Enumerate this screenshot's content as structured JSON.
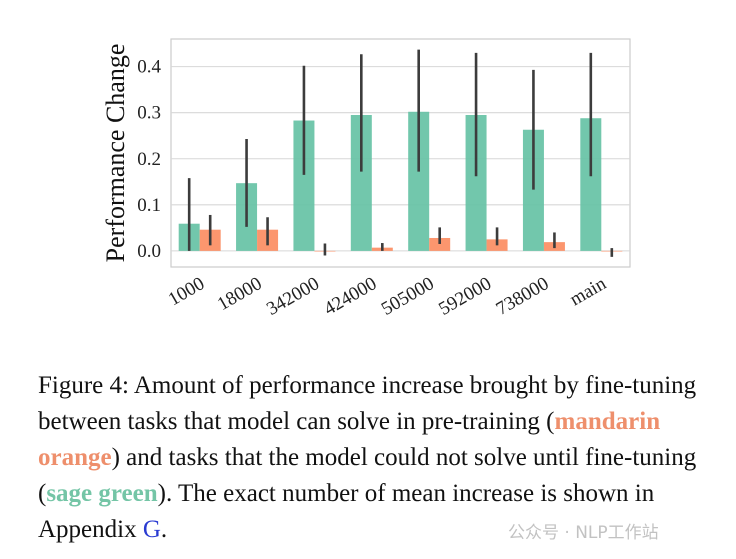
{
  "chart_data": {
    "type": "bar",
    "ylabel": "Performance Change",
    "xlabel": "",
    "ylim": [
      -0.035,
      0.46
    ],
    "yticks": [
      "0.0",
      "0.1",
      "0.2",
      "0.3",
      "0.4"
    ],
    "ytick_values": [
      0.0,
      0.1,
      0.2,
      0.3,
      0.4
    ],
    "grid": true,
    "categories": [
      "1000",
      "18000",
      "342000",
      "424000",
      "505000",
      "592000",
      "738000",
      "main"
    ],
    "series": [
      {
        "name": "could not solve until fine-tuning",
        "color": "#66c2a5",
        "values": [
          0.059,
          0.147,
          0.283,
          0.295,
          0.302,
          0.295,
          0.263,
          0.288
        ],
        "err_low": [
          0.0,
          0.052,
          0.165,
          0.172,
          0.172,
          0.162,
          0.133,
          0.162
        ],
        "err_high": [
          0.158,
          0.243,
          0.402,
          0.427,
          0.437,
          0.43,
          0.393,
          0.43
        ]
      },
      {
        "name": "can solve in pre-training",
        "color": "#fc8d62",
        "values": [
          0.046,
          0.046,
          0.0,
          0.007,
          0.028,
          0.025,
          0.019,
          0.0
        ],
        "err_low": [
          0.012,
          0.012,
          -0.01,
          0.0,
          0.015,
          0.012,
          0.006,
          -0.013
        ],
        "err_high": [
          0.078,
          0.073,
          0.016,
          0.017,
          0.051,
          0.051,
          0.04,
          0.006
        ]
      }
    ]
  },
  "caption": {
    "prefix": "Figure 4: Amount of performance increase brought by fine-tuning between tasks that model can solve in pre-training (",
    "orange_label": "mandarin orange",
    "middle": ") and tasks that the model could not solve until fine-tuning (",
    "green_label": "sage green",
    "suffix": "). The exact number of mean increase is shown in Appendix ",
    "appendix_ref": "G",
    "end": "."
  },
  "watermark": "公众号 · NLP工作站"
}
